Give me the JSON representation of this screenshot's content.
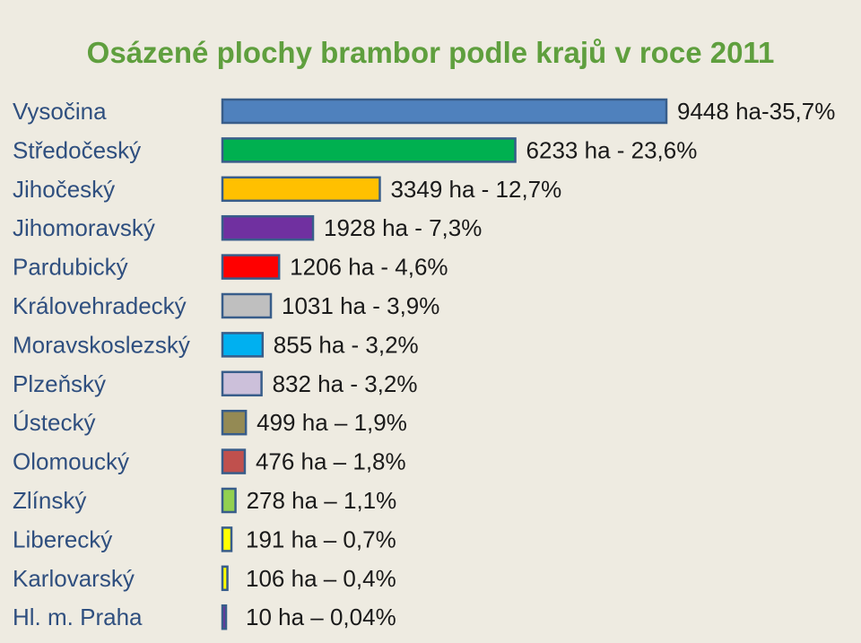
{
  "chart_data": {
    "type": "bar",
    "orientation": "horizontal",
    "title": "Osázené plochy brambor podle krajů v roce 2011",
    "categories": [
      "Vysočina",
      "Středočeský",
      "Jihočeský",
      "Jihomoravský",
      "Pardubický",
      "Královehradecký",
      "Moravskoslezský",
      "Plzeňský",
      "Ústecký",
      "Olomoucký",
      "Zlínský",
      "Liberecký",
      "Karlovarský",
      "Hl. m. Praha"
    ],
    "values": [
      9448,
      6233,
      3349,
      1928,
      1206,
      1031,
      855,
      832,
      499,
      476,
      278,
      191,
      106,
      10
    ],
    "data_labels": [
      "9448 ha-35,7%",
      "6233 ha - 23,6%",
      "3349 ha - 12,7%",
      "1928 ha - 7,3%",
      "1206 ha - 4,6%",
      "1031 ha - 3,9%",
      "855 ha - 3,2%",
      "832 ha - 3,2%",
      "499 ha – 1,9%",
      "476 ha – 1,8%",
      "278 ha – 1,1%",
      "191 ha – 0,7%",
      "106 ha – 0,4%",
      "10 ha – 0,04%"
    ],
    "colors": [
      "#4f81bd",
      "#00b050",
      "#ffc000",
      "#7030a0",
      "#ff0000",
      "#bfbfbf",
      "#00b0f0",
      "#ccc0da",
      "#948a54",
      "#c0504d",
      "#92d050",
      "#ffff00",
      "#ffff00",
      "#7030a0"
    ],
    "label_color": "#2f4f7f",
    "bar_border_color": "#385d8a",
    "title_color": "#5f9f3e",
    "axes_visible": false,
    "grid": false,
    "legend": false
  }
}
